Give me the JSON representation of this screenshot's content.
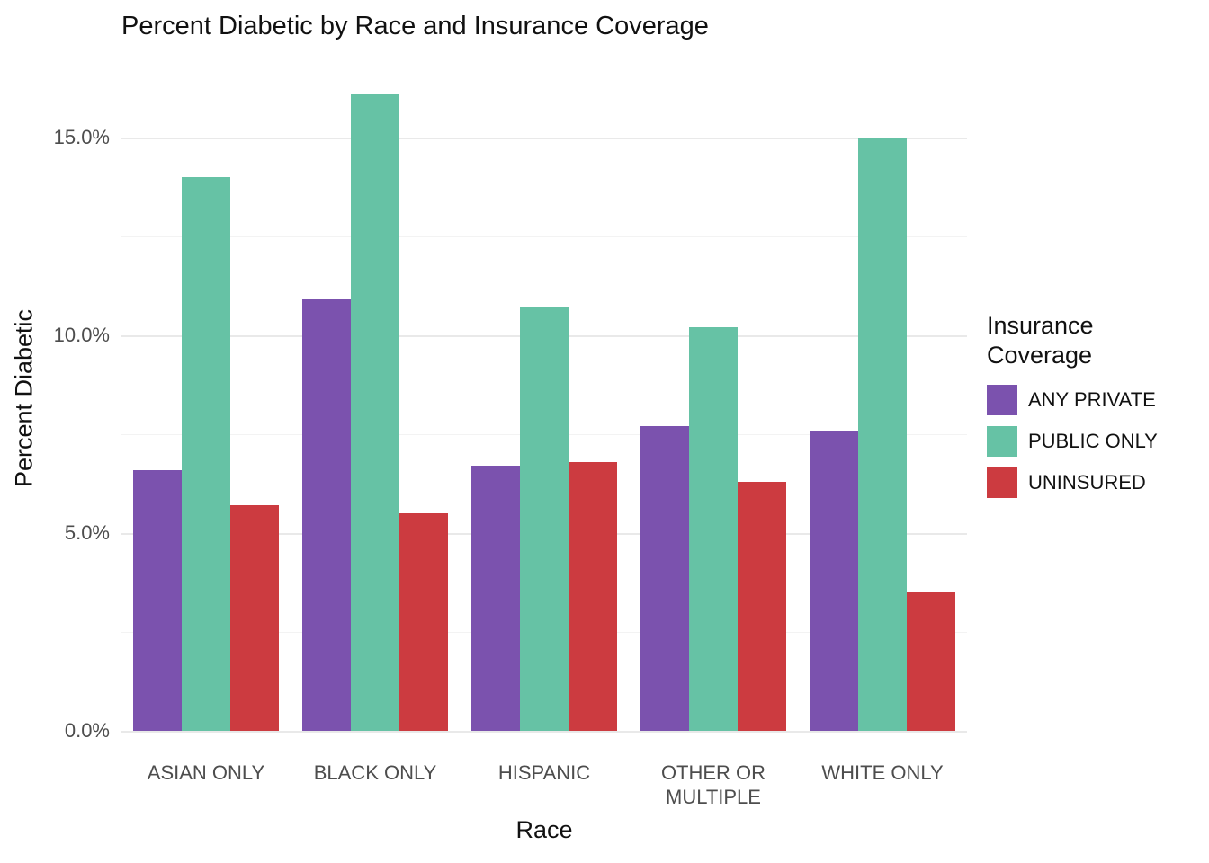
{
  "chart_data": {
    "type": "bar",
    "title": "Percent Diabetic by Race and Insurance Coverage",
    "xlabel": "Race",
    "ylabel": "Percent Diabetic",
    "legend_title": "Insurance Coverage",
    "legend_position": "right",
    "grid": true,
    "categories": [
      "ASIAN ONLY",
      "BLACK ONLY",
      "HISPANIC",
      "OTHER OR MULTIPLE",
      "WHITE ONLY"
    ],
    "series": [
      {
        "name": "ANY PRIVATE",
        "color": "#7B52AE",
        "values": [
          6.6,
          10.9,
          6.7,
          7.7,
          7.6
        ]
      },
      {
        "name": "PUBLIC ONLY",
        "color": "#66C2A5",
        "values": [
          14.0,
          16.1,
          10.7,
          10.2,
          15.0
        ]
      },
      {
        "name": "UNINSURED",
        "color": "#CC3B40",
        "values": [
          5.7,
          5.5,
          6.8,
          6.3,
          3.5
        ]
      }
    ],
    "ylim": [
      0,
      17
    ],
    "yticks": [
      {
        "value": 0,
        "label": "0.0%"
      },
      {
        "value": 5,
        "label": "5.0%"
      },
      {
        "value": 10,
        "label": "10.0%"
      },
      {
        "value": 15,
        "label": "15.0%"
      }
    ],
    "minor_ticks": [
      2.5,
      7.5,
      12.5
    ]
  }
}
